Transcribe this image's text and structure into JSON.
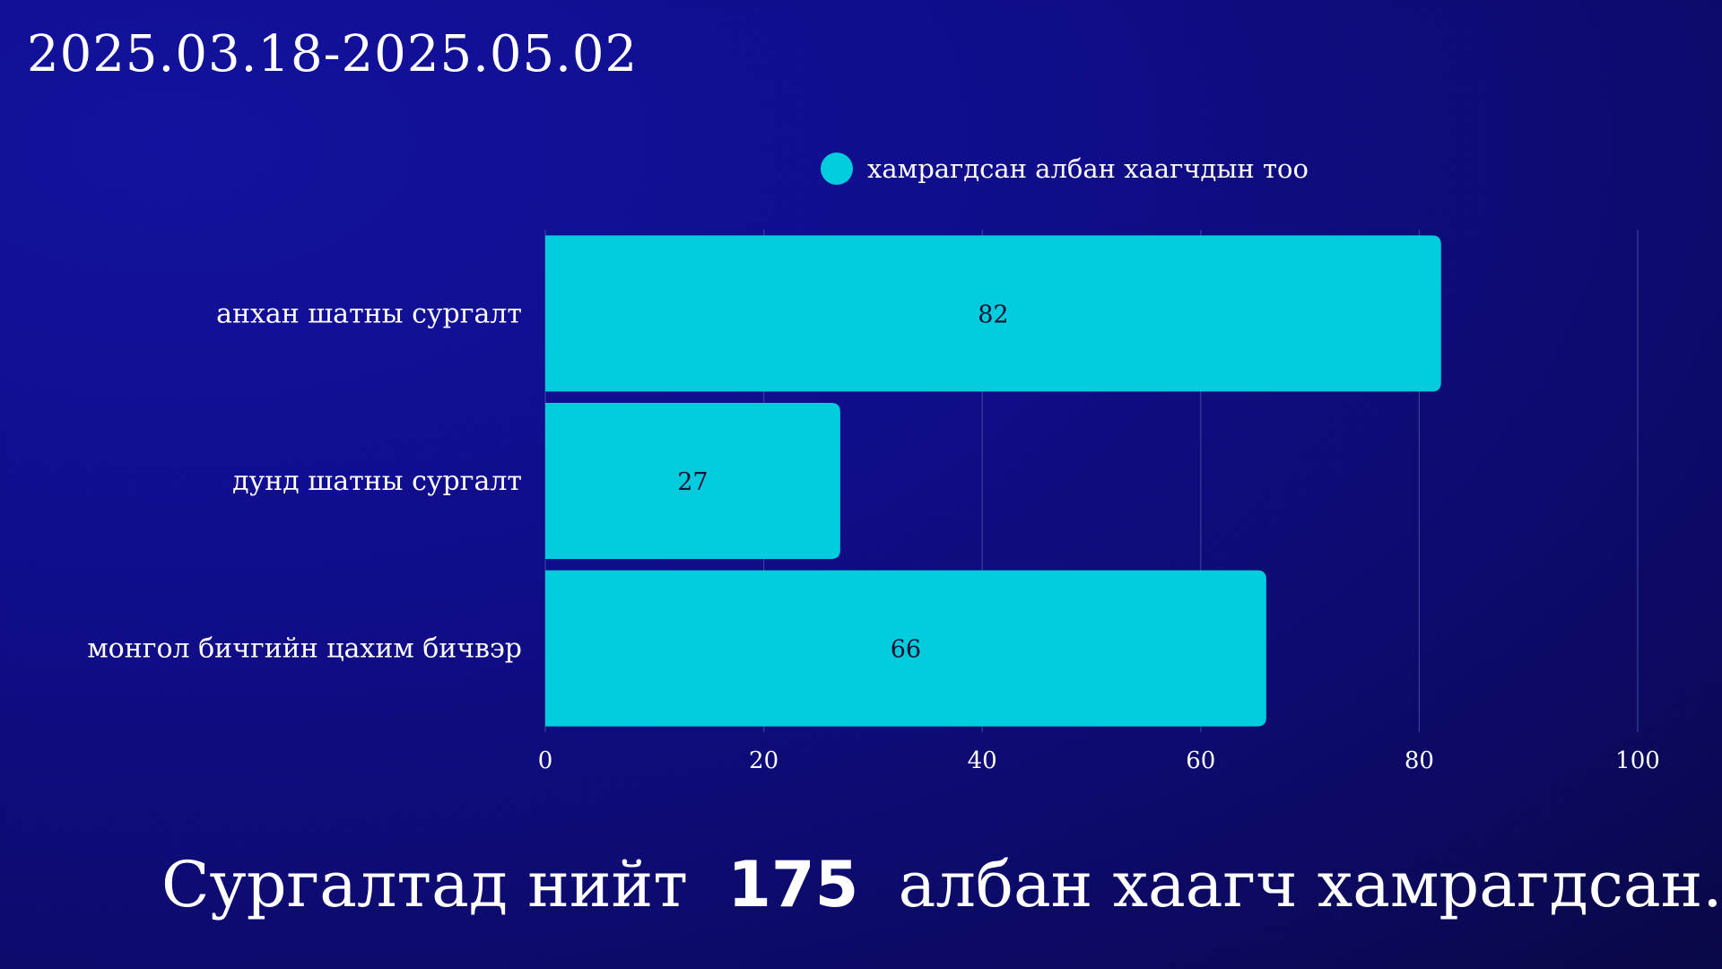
{
  "header": {
    "date_range": "2025.03.18-2025.05.02"
  },
  "summary": {
    "prefix": "Сургалтад нийт",
    "total": "175",
    "suffix": "албан хаагч хамрагдсан."
  },
  "colors": {
    "bar": "#00CCDD",
    "background": "#100D8A",
    "grid": "#3A3F9A",
    "label_inside": "#111133"
  },
  "chart_data": {
    "type": "bar",
    "orientation": "horizontal",
    "categories": [
      "анхан шатны сургалт",
      "дунд шатны сургалт",
      "монгол бичгийн цахим бичвэр"
    ],
    "series": [
      {
        "name": "хамрагдсан албан хаагчдын тоо",
        "values": [
          82,
          27,
          66
        ]
      }
    ],
    "xlim": [
      0,
      100
    ],
    "x_ticks": [
      0,
      20,
      40,
      60,
      80,
      100
    ],
    "grid": true,
    "legend_position": "top",
    "data_labels": true
  }
}
